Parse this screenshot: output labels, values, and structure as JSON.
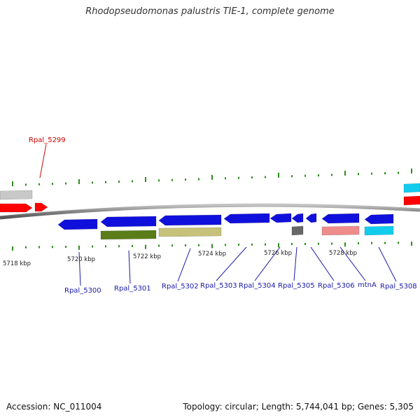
{
  "title": "Rhodopseudomonas palustris TIE-1, complete genome",
  "footer": {
    "accession": "Accession: NC_011004",
    "topology": "Topology: circular; Length: 5,744,041 bp; Genes: 5,305"
  },
  "colors": {
    "backbone": "#8c8c8c",
    "tick": "#2e8b1e",
    "blue_gene": "#1010dd",
    "red_gene": "#ff0000",
    "label_blue": "#1a1aa8",
    "label_red": "#cc0000",
    "olive": "#5a7d1a",
    "khaki": "#c7c27a",
    "gray_dark": "#666666",
    "gray_light": "#c8c8c8",
    "pink": "#ee8c8c",
    "cyan": "#12ccee"
  },
  "scale": {
    "labels": [
      "5718 kbp",
      "5720 kbp",
      "5722 kbp",
      "5724 kbp",
      "5726 kbp",
      "5728 kbp"
    ]
  },
  "genes": [
    {
      "name": "Rpal_5299",
      "color": "red"
    },
    {
      "name": "Rpal_5300",
      "color": "blue"
    },
    {
      "name": "Rpal_5301",
      "color": "blue"
    },
    {
      "name": "Rpal_5302",
      "color": "blue"
    },
    {
      "name": "Rpal_5303",
      "color": "blue"
    },
    {
      "name": "Rpal_5304",
      "color": "blue"
    },
    {
      "name": "Rpal_5305",
      "color": "blue"
    },
    {
      "name": "Rpal_5306",
      "color": "blue"
    },
    {
      "name": "mtnA",
      "color": "blue"
    },
    {
      "name": "Rpal_5308",
      "color": "blue"
    }
  ]
}
